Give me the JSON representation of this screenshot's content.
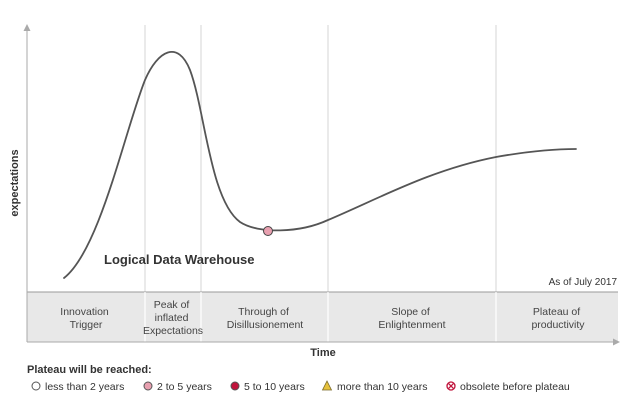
{
  "diagram": {
    "y_axis_label": "expectations",
    "x_axis_label": "Time",
    "as_of": "As of July 2017",
    "phases": [
      {
        "lines": [
          "Innovation",
          "Trigger"
        ]
      },
      {
        "lines": [
          "Peak of",
          "inflated",
          "Expectations"
        ]
      },
      {
        "lines": [
          "Through of",
          "Disillusionement"
        ]
      },
      {
        "lines": [
          "Slope of",
          "Enlightenment"
        ]
      },
      {
        "lines": [
          "Plateau of",
          "productivity"
        ]
      }
    ],
    "technologies": [
      {
        "name": "Logical Data Warehouse",
        "plateau_category": "2 to 5 years"
      }
    ]
  },
  "legend": {
    "title": "Plateau will be reached:",
    "items": [
      {
        "label": "less than 2 years",
        "icon": "open-circle-icon",
        "color": "#ffffff"
      },
      {
        "label": "2 to 5 years",
        "icon": "pink-circle-icon",
        "color": "#e8a0b0"
      },
      {
        "label": "5 to 10 years",
        "icon": "crimson-circle-icon",
        "color": "#c0143c"
      },
      {
        "label": "more than 10 years",
        "icon": "yellow-triangle-icon",
        "color": "#e6c13c"
      },
      {
        "label": "obsolete before plateau",
        "icon": "crossed-circle-icon",
        "color": "#c0143c"
      }
    ]
  },
  "colors": {
    "curve": "#555555",
    "band": "#e8e8e8",
    "divider": "#d6d6d6",
    "axis": "#aaaaaa"
  }
}
